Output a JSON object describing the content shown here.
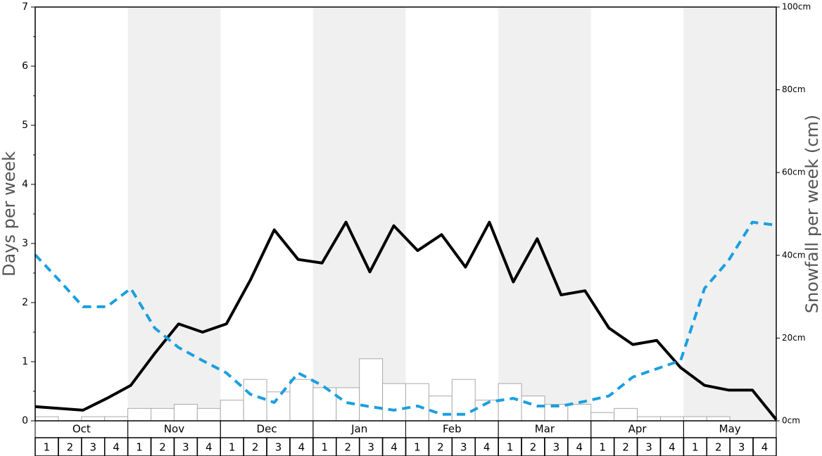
{
  "chart_data": {
    "type": "bar-line",
    "y_label": "Days per week",
    "y2_label": "Snowfall per week (cm)",
    "months": [
      "Oct",
      "Nov",
      "Dec",
      "Jan",
      "Feb",
      "Mar",
      "Apr",
      "May"
    ],
    "categories": [
      "1",
      "2",
      "3",
      "4",
      "1",
      "2",
      "3",
      "4",
      "1",
      "2",
      "3",
      "4",
      "1",
      "2",
      "3",
      "4",
      "1",
      "2",
      "3",
      "4",
      "1",
      "2",
      "3",
      "4",
      "1",
      "2",
      "3",
      "4",
      "1",
      "2",
      "3",
      "4"
    ],
    "ylim": [
      0,
      7
    ],
    "yticks": [
      0,
      1,
      2,
      3,
      4,
      5,
      6,
      7
    ],
    "y2lim": [
      0,
      100
    ],
    "y2ticks": [
      {
        "value": 0,
        "label": "0cm"
      },
      {
        "value": 20,
        "label": "20cm"
      },
      {
        "value": 40,
        "label": "40cm"
      },
      {
        "value": 60,
        "label": "60cm"
      },
      {
        "value": 80,
        "label": "80cm"
      },
      {
        "value": 100,
        "label": "100cm"
      }
    ],
    "bars": {
      "axis": "y2",
      "color": "#ffffff",
      "values": [
        1,
        0,
        1,
        1,
        3,
        3,
        4,
        3,
        5,
        10,
        7,
        10,
        8,
        8,
        15,
        9,
        9,
        6,
        10,
        5,
        9,
        6,
        4,
        4,
        2,
        3,
        1,
        1,
        1,
        1,
        0,
        0
      ]
    },
    "series": [
      {
        "color": "#000000",
        "style": "solid",
        "values": [
          0.24,
          0.21,
          0.18,
          0.38,
          0.6,
          1.14,
          1.64,
          1.5,
          1.64,
          2.38,
          3.23,
          2.73,
          2.67,
          3.36,
          2.52,
          3.3,
          2.88,
          3.15,
          2.6,
          3.36,
          2.35,
          3.08,
          2.13,
          2.2,
          1.57,
          1.29,
          1.36,
          0.9,
          0.6,
          0.52,
          0.52,
          0.02
        ]
      },
      {
        "color": "#1a9fe0",
        "style": "dashed",
        "values": [
          2.81,
          2.38,
          1.93,
          1.93,
          2.24,
          1.57,
          1.24,
          1.02,
          0.81,
          0.45,
          0.31,
          0.81,
          0.6,
          0.31,
          0.24,
          0.18,
          0.25,
          0.11,
          0.11,
          0.32,
          0.38,
          0.25,
          0.25,
          0.33,
          0.42,
          0.74,
          0.88,
          1.02,
          2.24,
          2.71,
          3.36,
          3.31
        ]
      }
    ]
  }
}
